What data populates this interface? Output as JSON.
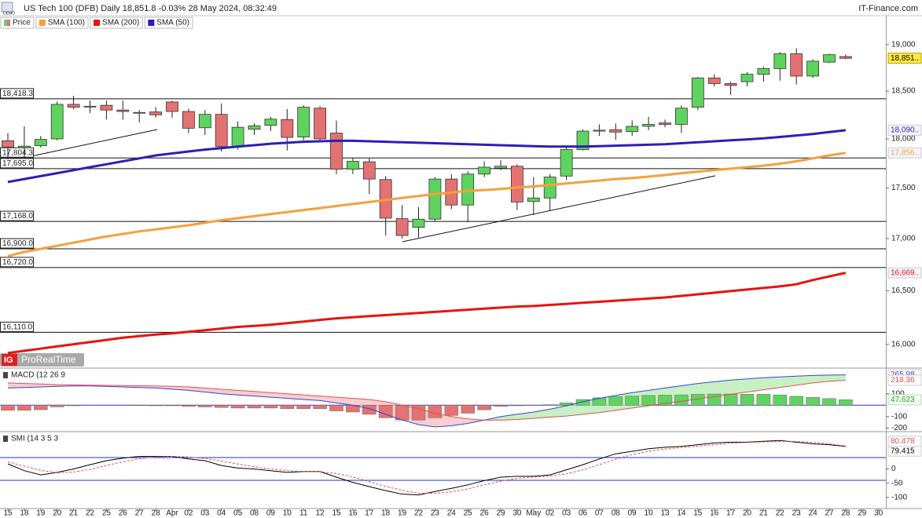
{
  "header": {
    "badge": "DEMO",
    "source": "IT-Finance.com",
    "logo": "IG",
    "watermark": "ProRealTime"
  },
  "chart_data": [
    {
      "type": "candlestick",
      "title": "US Tech 100 (DFB) Daily 18,851.8 -0.03% 28 May 2024, 08:32:49",
      "price_name": "Price",
      "up_color": "#5fd35f",
      "down_color": "#e47272",
      "last_label": "18,851..",
      "last_color": "#ffe83a",
      "log_scale": true,
      "ylim": [
        15790,
        19300
      ],
      "yticks": [
        {
          "value": 16000,
          "label": "16,000"
        },
        {
          "value": 16500,
          "label": "16,500"
        },
        {
          "value": 17000,
          "label": "17,000"
        },
        {
          "value": 17500,
          "label": "17,500"
        },
        {
          "value": 18000,
          "label": "18,000"
        },
        {
          "value": 18500,
          "label": "18,500"
        },
        {
          "value": 19000,
          "label": "19,000"
        }
      ],
      "levels": [
        {
          "value": 18418.3,
          "label": "18,418.3"
        },
        {
          "value": 17804.3,
          "label": "17,804.3"
        },
        {
          "value": 17695.0,
          "label": "17,695.0"
        },
        {
          "value": 17168.0,
          "label": "17,168.0"
        },
        {
          "value": 16900.0,
          "label": "16,900.0"
        },
        {
          "value": 16720.0,
          "label": "16,720.0"
        },
        {
          "value": 16110.0,
          "label": "16,110.0"
        }
      ],
      "open": [
        17980,
        17910,
        17930,
        18000,
        18360,
        18335,
        18350,
        18300,
        18270,
        18280,
        18385,
        18285,
        18115,
        18255,
        17920,
        18100,
        18140,
        18200,
        18020,
        18320,
        18060,
        17690,
        17765,
        17585,
        17195,
        17110,
        17190,
        17590,
        17330,
        17640,
        17700,
        17720,
        17365,
        17400,
        17620,
        17890,
        18080,
        18095,
        18075,
        18130,
        18165,
        18150,
        18330,
        18640,
        18580,
        18600,
        18680,
        18740,
        18900,
        18660,
        18810,
        18870,
        null,
        null
      ],
      "high": [
        18060,
        18130,
        18030,
        18390,
        18450,
        18400,
        18400,
        18400,
        18300,
        18330,
        18400,
        18315,
        18300,
        18370,
        18180,
        18160,
        18230,
        18310,
        18350,
        18340,
        18190,
        17800,
        17800,
        17620,
        17330,
        17310,
        17610,
        17640,
        17670,
        17770,
        17780,
        17740,
        17610,
        17640,
        17920,
        18100,
        18150,
        18160,
        18190,
        18230,
        18200,
        18350,
        18650,
        18680,
        18600,
        18700,
        18760,
        18920,
        18960,
        18840,
        18900,
        18890,
        null,
        null
      ],
      "low": [
        17790,
        17800,
        17910,
        17985,
        18310,
        18270,
        18200,
        18200,
        18170,
        18220,
        18220,
        18060,
        18040,
        17870,
        17890,
        18040,
        18080,
        17880,
        17985,
        17985,
        17640,
        17640,
        17440,
        17030,
        17000,
        17010,
        17170,
        17290,
        17160,
        17610,
        17680,
        17280,
        17230,
        17270,
        17580,
        17880,
        18030,
        17990,
        18030,
        18090,
        18120,
        18060,
        18300,
        18550,
        18460,
        18550,
        18600,
        18610,
        18570,
        18640,
        18800,
        18840,
        null,
        null
      ],
      "close": [
        17915,
        17925,
        17995,
        18360,
        18330,
        18340,
        18300,
        18285,
        18275,
        18250,
        18285,
        18110,
        18255,
        17920,
        18120,
        18135,
        18205,
        18015,
        18330,
        18000,
        17690,
        17770,
        17590,
        17200,
        17030,
        17190,
        17590,
        17330,
        17640,
        17710,
        17720,
        17360,
        17400,
        17610,
        17890,
        18080,
        18090,
        18070,
        18130,
        18150,
        18150,
        18320,
        18640,
        18580,
        18560,
        18680,
        18740,
        18900,
        18660,
        18820,
        18890,
        18851.8,
        null,
        null
      ],
      "series": [
        {
          "name": "SMA (100)",
          "color": "#f5a03a",
          "last_label": "17,856..",
          "values": [
            16830,
            16870,
            16900,
            16930,
            16960,
            16990,
            17020,
            17045,
            17070,
            17090,
            17110,
            17130,
            17155,
            17180,
            17200,
            17220,
            17240,
            17260,
            17280,
            17300,
            17320,
            17340,
            17360,
            17380,
            17400,
            17420,
            17440,
            17455,
            17470,
            17480,
            17490,
            17505,
            17515,
            17530,
            17545,
            17560,
            17575,
            17590,
            17600,
            17615,
            17630,
            17650,
            17665,
            17680,
            17695,
            17710,
            17725,
            17745,
            17770,
            17800,
            17830,
            17856,
            null,
            null
          ]
        },
        {
          "name": "SMA (200)",
          "color": "#e8130f",
          "last_label": "16,669..",
          "values": [
            15920,
            15940,
            15960,
            15980,
            16000,
            16020,
            16040,
            16060,
            16075,
            16090,
            16100,
            16115,
            16130,
            16145,
            16160,
            16170,
            16180,
            16195,
            16210,
            16225,
            16240,
            16250,
            16260,
            16270,
            16280,
            16290,
            16300,
            16310,
            16320,
            16330,
            16340,
            16350,
            16355,
            16365,
            16375,
            16385,
            16395,
            16405,
            16415,
            16425,
            16435,
            16450,
            16465,
            16480,
            16495,
            16510,
            16525,
            16540,
            16560,
            16600,
            16635,
            16669,
            null,
            null
          ]
        },
        {
          "name": "SMA (50)",
          "color": "#2b1fb8",
          "last_label": "18,090..",
          "values": [
            17560,
            17590,
            17620,
            17650,
            17680,
            17710,
            17740,
            17770,
            17800,
            17830,
            17850,
            17870,
            17890,
            17905,
            17920,
            17935,
            17950,
            17960,
            17970,
            17975,
            17980,
            17980,
            17975,
            17970,
            17965,
            17960,
            17955,
            17950,
            17945,
            17940,
            17935,
            17930,
            17925,
            17920,
            17920,
            17920,
            17925,
            17930,
            17935,
            17940,
            17945,
            17955,
            17965,
            17975,
            17985,
            17995,
            18005,
            18020,
            18035,
            18050,
            18070,
            18090,
            null,
            null
          ]
        }
      ]
    },
    {
      "type": "macd",
      "title": "MACD (12 26 9",
      "ylim": [
        -225,
        318
      ],
      "yticks": [
        -200,
        -100,
        100
      ],
      "hlines": [
        0
      ],
      "hline_color": "#2233cc",
      "histogram": {
        "pos_color": "#5fd35f",
        "neg_color": "#e47272",
        "values": [
          -45,
          -45,
          -40,
          -15,
          -5,
          0,
          0,
          0,
          -3,
          -5,
          -5,
          -10,
          -15,
          -20,
          -25,
          -25,
          -25,
          -30,
          -30,
          -30,
          -50,
          -60,
          -80,
          -110,
          -130,
          -130,
          -110,
          -90,
          -70,
          -40,
          -10,
          -5,
          0,
          5,
          20,
          50,
          65,
          75,
          80,
          85,
          88,
          90,
          95,
          98,
          98,
          96,
          95,
          90,
          78,
          68,
          58,
          47.623,
          null,
          null
        ]
      },
      "series": [
        {
          "color": "#3344dd",
          "values": [
            150,
            155,
            160,
            165,
            168,
            168,
            165,
            160,
            155,
            150,
            140,
            130,
            115,
            100,
            90,
            80,
            70,
            60,
            50,
            40,
            20,
            0,
            -30,
            -80,
            -130,
            -170,
            -190,
            -180,
            -160,
            -130,
            -100,
            -80,
            -60,
            -35,
            -5,
            30,
            60,
            85,
            110,
            130,
            150,
            170,
            190,
            205,
            220,
            230,
            240,
            248,
            255,
            260,
            264,
            265.98,
            null,
            null
          ]
        },
        {
          "color": "#e05050",
          "values": [
            195,
            190,
            185,
            180,
            178,
            176,
            174,
            172,
            170,
            168,
            165,
            160,
            150,
            140,
            130,
            120,
            110,
            100,
            90,
            80,
            70,
            60,
            50,
            30,
            0,
            -30,
            -70,
            -100,
            -120,
            -130,
            -130,
            -125,
            -115,
            -105,
            -95,
            -80,
            -65,
            -45,
            -25,
            -5,
            15,
            35,
            55,
            75,
            95,
            115,
            135,
            155,
            175,
            195,
            210,
            218.36,
            null,
            null
          ]
        }
      ]
    },
    {
      "type": "line",
      "title": "SMI (14 3 5 3",
      "ylim": [
        -139,
        128
      ],
      "yticks": [
        -100,
        -50,
        0
      ],
      "hlines": [
        40,
        -40
      ],
      "hline_color": "#2233cc",
      "categories": [
        "15",
        "18",
        "19",
        "20",
        "21",
        "22",
        "25",
        "26",
        "27",
        "28",
        "Apr",
        "02",
        "03",
        "04",
        "05",
        "08",
        "09",
        "10",
        "11",
        "12",
        "15",
        "16",
        "17",
        "18",
        "19",
        "22",
        "23",
        "24",
        "25",
        "26",
        "29",
        "30",
        "May",
        "02",
        "03",
        "06",
        "07",
        "08",
        "09",
        "10",
        "13",
        "14",
        "15",
        "16",
        "17",
        "20",
        "21",
        "22",
        "23",
        "24",
        "27",
        "28",
        "29",
        "30"
      ],
      "series": [
        {
          "color": "#000000",
          "values": [
            18,
            -6,
            -21,
            -12,
            0,
            15,
            29,
            38,
            44,
            44,
            44,
            35,
            29,
            12,
            3,
            0,
            -6,
            -12,
            -9,
            -9,
            -29,
            -47,
            -62,
            -76,
            -88,
            -91,
            -79,
            -68,
            -56,
            -41,
            -29,
            -26,
            -26,
            -21,
            -3,
            15,
            35,
            53,
            62,
            71,
            76,
            79,
            85,
            91,
            94,
            94,
            97,
            100,
            94,
            88,
            85,
            79.415,
            null,
            null
          ]
        },
        {
          "color": "#e05050",
          "dashed": true,
          "values": [
            25,
            10,
            -5,
            -13,
            -11,
            -2,
            12,
            25,
            36,
            42,
            44,
            42,
            37,
            28,
            17,
            8,
            0,
            -6,
            -9,
            -10,
            -16,
            -28,
            -45,
            -61,
            -75,
            -85,
            -86,
            -80,
            -70,
            -56,
            -43,
            -33,
            -28,
            -25,
            -17,
            -3,
            15,
            34,
            50,
            62,
            70,
            75,
            80,
            85,
            90,
            93,
            95,
            97,
            96,
            93,
            88,
            80.478,
            null,
            null
          ]
        }
      ]
    }
  ]
}
